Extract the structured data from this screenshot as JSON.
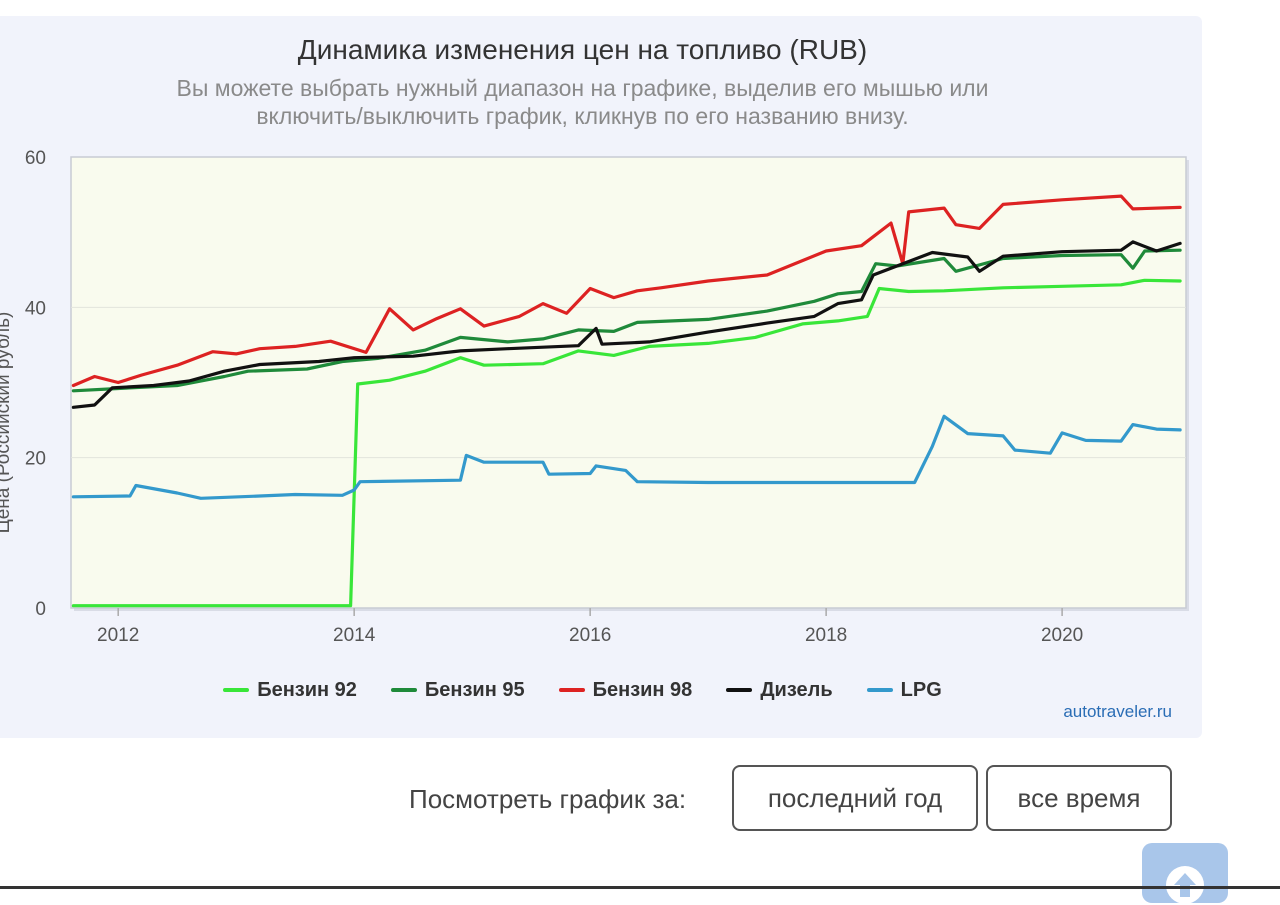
{
  "chart_data": {
    "type": "line",
    "title": "Динамика изменения цен на топливо (RUB)",
    "subtitle_lines": [
      "Вы можете выбрать нужный диапазон на графике, выделив его мышью или",
      "включить/выключить график, кликнув по его названию внизу."
    ],
    "ylabel": "Цена (Российский рубль)",
    "xlabel": "",
    "xlim": [
      2011.6,
      2021.05
    ],
    "ylim": [
      0,
      60
    ],
    "x_ticks": [
      2012,
      2014,
      2016,
      2018,
      2020
    ],
    "y_ticks": [
      0,
      20,
      40,
      60
    ],
    "grid": "horizontal",
    "legend_position": "bottom",
    "series": [
      {
        "name": "Бензин 92",
        "color": "#39e639",
        "points": [
          [
            2011.62,
            0.3
          ],
          [
            2013.97,
            0.3
          ],
          [
            2014.03,
            29.8
          ],
          [
            2014.3,
            30.3
          ],
          [
            2014.6,
            31.5
          ],
          [
            2014.9,
            33.3
          ],
          [
            2015.1,
            32.3
          ],
          [
            2015.6,
            32.5
          ],
          [
            2015.9,
            34.2
          ],
          [
            2016.2,
            33.6
          ],
          [
            2016.5,
            34.8
          ],
          [
            2017.0,
            35.2
          ],
          [
            2017.4,
            36.0
          ],
          [
            2017.8,
            37.8
          ],
          [
            2018.1,
            38.2
          ],
          [
            2018.35,
            38.8
          ],
          [
            2018.45,
            42.5
          ],
          [
            2018.7,
            42.1
          ],
          [
            2019.0,
            42.2
          ],
          [
            2019.5,
            42.6
          ],
          [
            2020.0,
            42.8
          ],
          [
            2020.5,
            43.0
          ],
          [
            2020.7,
            43.6
          ],
          [
            2021.0,
            43.5
          ]
        ]
      },
      {
        "name": "Бензин 95",
        "color": "#1f8a3a",
        "points": [
          [
            2011.62,
            28.9
          ],
          [
            2012.0,
            29.2
          ],
          [
            2012.5,
            29.6
          ],
          [
            2012.9,
            30.8
          ],
          [
            2013.1,
            31.5
          ],
          [
            2013.6,
            31.8
          ],
          [
            2013.9,
            32.8
          ],
          [
            2014.2,
            33.2
          ],
          [
            2014.6,
            34.3
          ],
          [
            2014.9,
            36.0
          ],
          [
            2015.3,
            35.4
          ],
          [
            2015.6,
            35.8
          ],
          [
            2015.9,
            37.0
          ],
          [
            2016.2,
            36.8
          ],
          [
            2016.4,
            38.0
          ],
          [
            2017.0,
            38.4
          ],
          [
            2017.5,
            39.5
          ],
          [
            2017.9,
            40.8
          ],
          [
            2018.1,
            41.8
          ],
          [
            2018.3,
            42.1
          ],
          [
            2018.42,
            45.8
          ],
          [
            2018.6,
            45.5
          ],
          [
            2019.0,
            46.5
          ],
          [
            2019.1,
            44.8
          ],
          [
            2019.5,
            46.5
          ],
          [
            2020.0,
            46.9
          ],
          [
            2020.5,
            47.0
          ],
          [
            2020.6,
            45.2
          ],
          [
            2020.7,
            47.5
          ],
          [
            2021.0,
            47.6
          ]
        ]
      },
      {
        "name": "Бензин 98",
        "color": "#dd2222",
        "points": [
          [
            2011.62,
            29.6
          ],
          [
            2011.8,
            30.8
          ],
          [
            2012.0,
            30.0
          ],
          [
            2012.2,
            31.0
          ],
          [
            2012.5,
            32.3
          ],
          [
            2012.8,
            34.1
          ],
          [
            2013.0,
            33.8
          ],
          [
            2013.2,
            34.5
          ],
          [
            2013.5,
            34.8
          ],
          [
            2013.8,
            35.5
          ],
          [
            2014.1,
            34.0
          ],
          [
            2014.3,
            39.8
          ],
          [
            2014.5,
            37.0
          ],
          [
            2014.7,
            38.5
          ],
          [
            2014.9,
            39.8
          ],
          [
            2015.1,
            37.5
          ],
          [
            2015.4,
            38.8
          ],
          [
            2015.6,
            40.5
          ],
          [
            2015.8,
            39.2
          ],
          [
            2016.0,
            42.5
          ],
          [
            2016.2,
            41.3
          ],
          [
            2016.4,
            42.2
          ],
          [
            2016.6,
            42.6
          ],
          [
            2017.0,
            43.5
          ],
          [
            2017.5,
            44.3
          ],
          [
            2018.0,
            47.5
          ],
          [
            2018.3,
            48.2
          ],
          [
            2018.55,
            51.2
          ],
          [
            2018.65,
            45.8
          ],
          [
            2018.7,
            52.7
          ],
          [
            2019.0,
            53.2
          ],
          [
            2019.1,
            51.0
          ],
          [
            2019.3,
            50.5
          ],
          [
            2019.5,
            53.7
          ],
          [
            2020.0,
            54.3
          ],
          [
            2020.5,
            54.8
          ],
          [
            2020.6,
            53.1
          ],
          [
            2021.0,
            53.3
          ]
        ]
      },
      {
        "name": "Дизель",
        "color": "#111111",
        "points": [
          [
            2011.62,
            26.7
          ],
          [
            2011.8,
            27.0
          ],
          [
            2011.95,
            29.3
          ],
          [
            2012.3,
            29.6
          ],
          [
            2012.6,
            30.2
          ],
          [
            2012.9,
            31.5
          ],
          [
            2013.2,
            32.4
          ],
          [
            2013.7,
            32.8
          ],
          [
            2014.0,
            33.3
          ],
          [
            2014.5,
            33.5
          ],
          [
            2014.9,
            34.2
          ],
          [
            2015.3,
            34.5
          ],
          [
            2015.9,
            34.9
          ],
          [
            2016.05,
            37.2
          ],
          [
            2016.1,
            35.1
          ],
          [
            2016.5,
            35.4
          ],
          [
            2017.0,
            36.7
          ],
          [
            2017.5,
            37.9
          ],
          [
            2017.9,
            38.8
          ],
          [
            2018.1,
            40.5
          ],
          [
            2018.3,
            41.0
          ],
          [
            2018.4,
            44.3
          ],
          [
            2018.6,
            45.5
          ],
          [
            2018.9,
            47.3
          ],
          [
            2019.2,
            46.7
          ],
          [
            2019.3,
            44.8
          ],
          [
            2019.5,
            46.8
          ],
          [
            2020.0,
            47.4
          ],
          [
            2020.5,
            47.6
          ],
          [
            2020.6,
            48.7
          ],
          [
            2020.8,
            47.5
          ],
          [
            2021.0,
            48.5
          ]
        ]
      },
      {
        "name": "LPG",
        "color": "#3399cc",
        "points": [
          [
            2011.62,
            14.8
          ],
          [
            2012.1,
            14.9
          ],
          [
            2012.15,
            16.3
          ],
          [
            2012.5,
            15.3
          ],
          [
            2012.7,
            14.6
          ],
          [
            2013.2,
            14.9
          ],
          [
            2013.5,
            15.1
          ],
          [
            2013.9,
            15.0
          ],
          [
            2014.0,
            15.7
          ],
          [
            2014.05,
            16.8
          ],
          [
            2014.9,
            17.0
          ],
          [
            2014.95,
            20.3
          ],
          [
            2015.1,
            19.4
          ],
          [
            2015.6,
            19.4
          ],
          [
            2015.65,
            17.8
          ],
          [
            2016.0,
            17.9
          ],
          [
            2016.05,
            18.9
          ],
          [
            2016.3,
            18.3
          ],
          [
            2016.4,
            16.8
          ],
          [
            2017.0,
            16.7
          ],
          [
            2018.0,
            16.7
          ],
          [
            2018.75,
            16.7
          ],
          [
            2018.9,
            21.5
          ],
          [
            2019.0,
            25.5
          ],
          [
            2019.2,
            23.2
          ],
          [
            2019.5,
            22.9
          ],
          [
            2019.6,
            21.0
          ],
          [
            2019.9,
            20.6
          ],
          [
            2020.0,
            23.3
          ],
          [
            2020.2,
            22.3
          ],
          [
            2020.5,
            22.2
          ],
          [
            2020.6,
            24.4
          ],
          [
            2020.8,
            23.8
          ],
          [
            2021.0,
            23.7
          ]
        ]
      }
    ]
  },
  "credit": "autotraveler.ru",
  "controls": {
    "view_label": "Посмотреть график за:",
    "last_year_button": "последний год",
    "all_time_button": "все время"
  },
  "colors": {
    "plot_background": "#f9fbee",
    "card_background": "#f1f3fb",
    "accent": "#a9c6ea"
  },
  "icons": {
    "scroll_up": "arrow-up-icon"
  }
}
